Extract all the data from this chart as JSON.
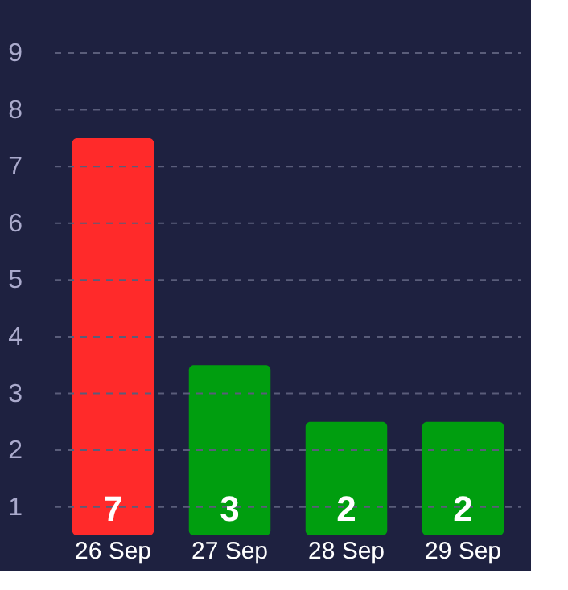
{
  "chart_data": {
    "type": "bar",
    "categories": [
      "26 Sep",
      "27 Sep",
      "28 Sep",
      "29 Sep"
    ],
    "values": [
      7,
      3,
      2,
      2
    ],
    "base": [
      0.5,
      0.5,
      0.5,
      0.5
    ],
    "colors": [
      "#ff2a2a",
      "#009e0f",
      "#009e0f",
      "#009e0f"
    ],
    "data_labels": true,
    "ylim": [
      0.5,
      9
    ],
    "yticks": [
      1,
      2,
      3,
      4,
      5,
      6,
      7,
      8,
      9
    ],
    "grid": "y",
    "line_style": "dashed"
  }
}
